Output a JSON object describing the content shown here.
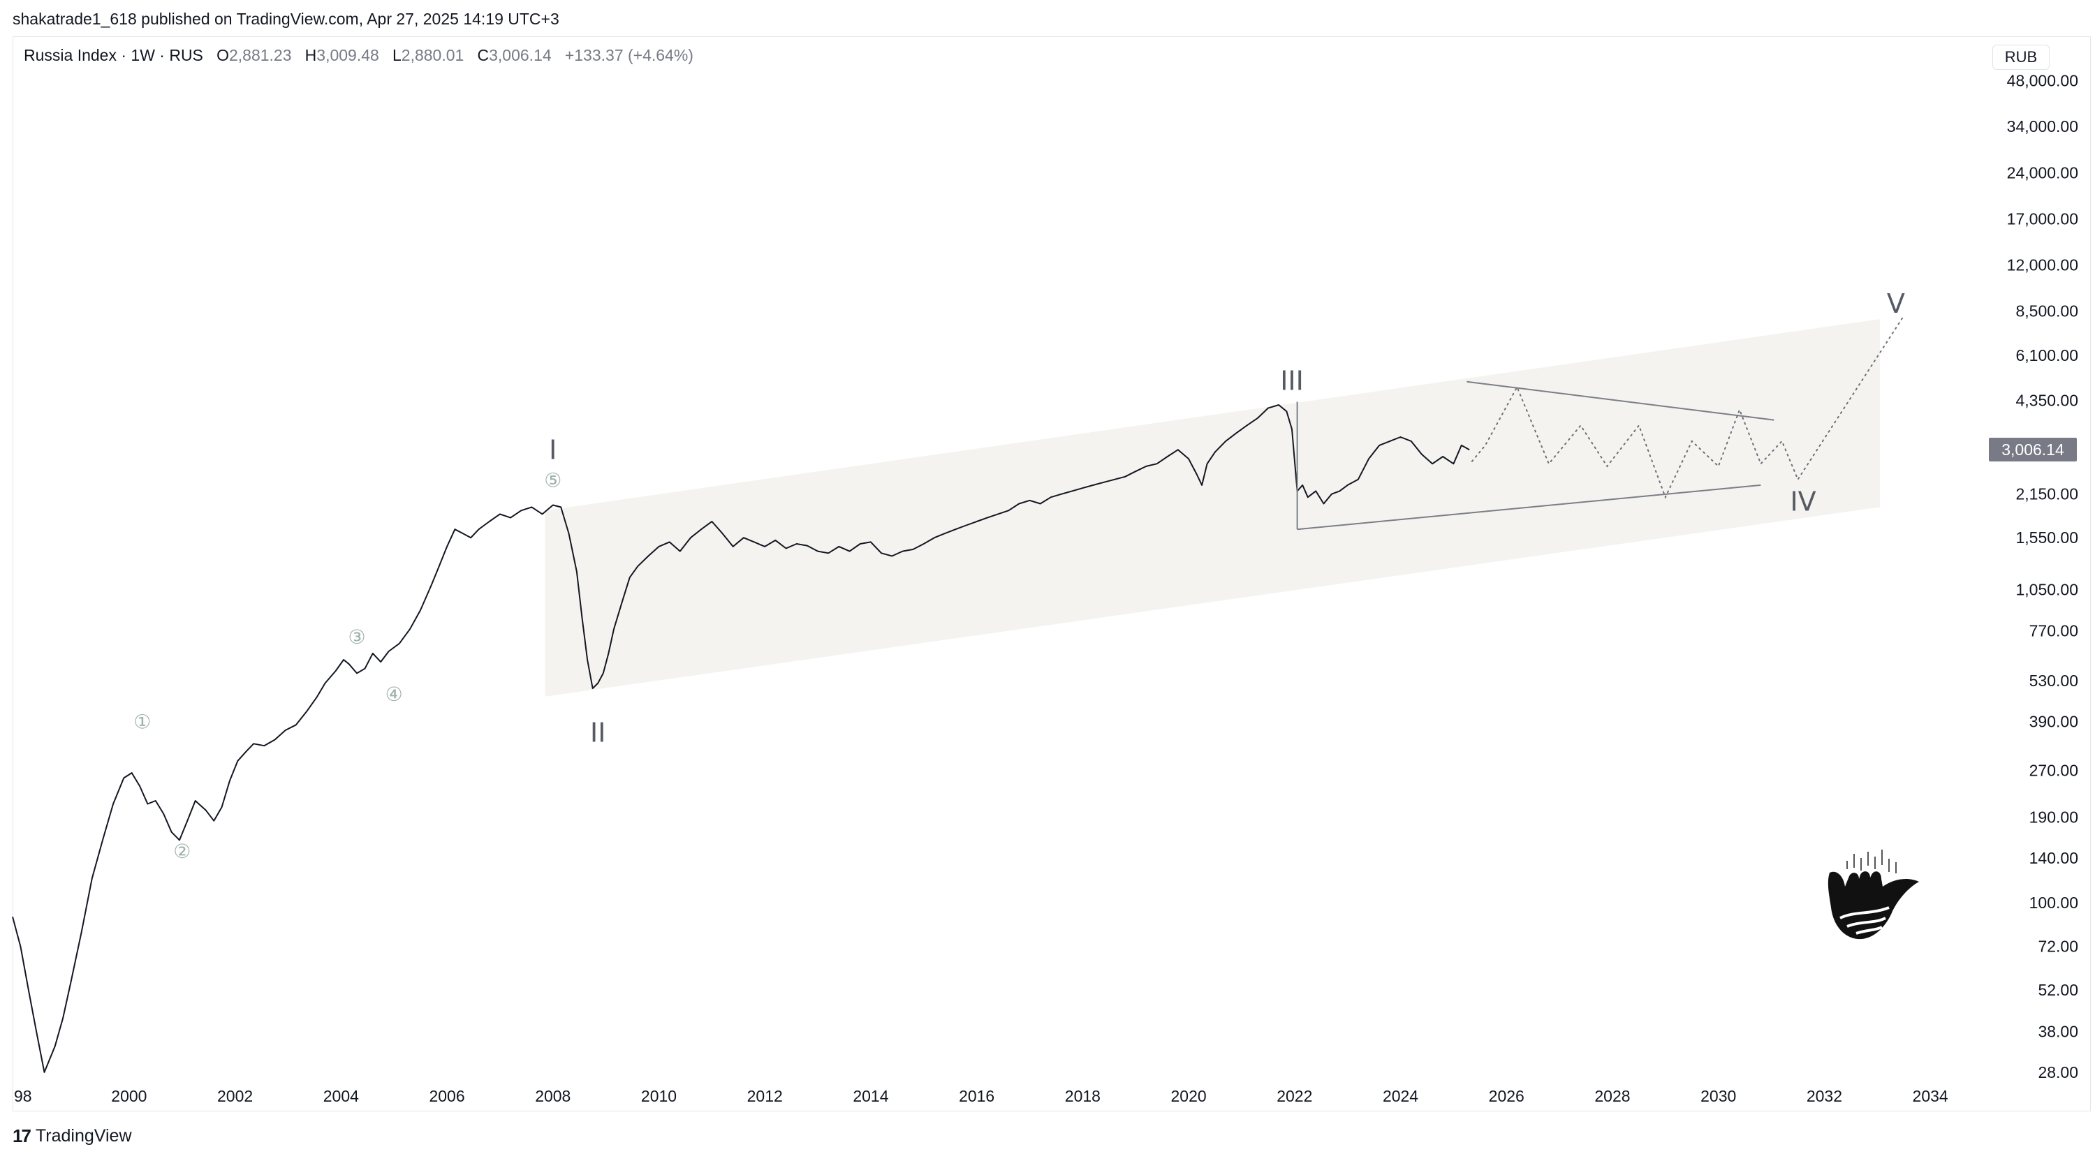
{
  "header": {
    "credit": "shakatrade1_618 published on TradingView.com, Apr 27, 2025 14:19 UTC+3"
  },
  "legend": {
    "symbol": "Russia Index · 1W · RUS",
    "open_label": "O",
    "open": "2,881.23",
    "high_label": "H",
    "high": "3,009.48",
    "low_label": "L",
    "low": "2,880.01",
    "close_label": "C",
    "close": "3,006.14",
    "change": "+133.37 (+4.64%)"
  },
  "currency_button": "RUB",
  "last_price_badge": "3,006.14",
  "footer": {
    "logo_glyph": "17",
    "brand": "TradingView"
  },
  "colors": {
    "price_line": "#131722",
    "channel_fill": "#f5f3f0",
    "projection": "#6b6f78",
    "wave_big": "#555a63",
    "wave_small": "#9fb2a8",
    "badge": "#787b86"
  },
  "chart_data": {
    "type": "line",
    "y_scale": "log",
    "ylim": [
      26,
      52000
    ],
    "xlim": [
      1997.8,
      2035
    ],
    "y_ticks": [
      "48,000.00",
      "34,000.00",
      "24,000.00",
      "17,000.00",
      "12,000.00",
      "8,500.00",
      "6,100.00",
      "4,350.00",
      "3,006.14",
      "2,150.00",
      "1,550.00",
      "1,050.00",
      "770.00",
      "530.00",
      "390.00",
      "270.00",
      "190.00",
      "140.00",
      "100.00",
      "72.00",
      "52.00",
      "38.00",
      "28.00"
    ],
    "x_ticks": [
      "98",
      "2000",
      "2002",
      "2004",
      "2006",
      "2008",
      "2010",
      "2012",
      "2014",
      "2016",
      "2018",
      "2020",
      "2022",
      "2024",
      "2026",
      "2028",
      "2030",
      "2032",
      "2034"
    ],
    "series": [
      {
        "x": [
          1997.8,
          1997.95,
          1998.1,
          1998.25,
          1998.4,
          1998.6,
          1998.75,
          1998.9,
          1999.1,
          1999.3,
          1999.5,
          1999.7,
          1999.9,
          2000.05,
          2000.2,
          2000.35,
          2000.5,
          2000.65,
          2000.8,
          2000.95,
          2001.1,
          2001.25,
          2001.45,
          2001.6,
          2001.75,
          2001.9,
          2002.05,
          2002.2,
          2002.35,
          2002.55,
          2002.75,
          2002.95,
          2003.15,
          2003.35,
          2003.55,
          2003.7,
          2003.9,
          2004.05,
          2004.15,
          2004.3,
          2004.45,
          2004.6,
          2004.75,
          2004.9,
          2005.1,
          2005.3,
          2005.5,
          2005.7,
          2005.85,
          2006.0,
          2006.15,
          2006.3,
          2006.45,
          2006.6,
          2006.8,
          2007.0,
          2007.2,
          2007.4,
          2007.6,
          2007.8,
          2008.0,
          2008.15,
          2008.3,
          2008.45,
          2008.55,
          2008.65,
          2008.75,
          2008.85,
          2008.95,
          2009.05,
          2009.15,
          2009.3,
          2009.45,
          2009.6,
          2009.8,
          2010.0,
          2010.2,
          2010.4,
          2010.6,
          2010.8,
          2011.0,
          2011.2,
          2011.4,
          2011.6,
          2011.8,
          2012.0,
          2012.2,
          2012.4,
          2012.6,
          2012.8,
          2013.0,
          2013.2,
          2013.4,
          2013.6,
          2013.8,
          2014.0,
          2014.2,
          2014.4,
          2014.6,
          2014.8,
          2015.0,
          2015.2,
          2015.4,
          2015.6,
          2015.8,
          2016.0,
          2016.2,
          2016.4,
          2016.6,
          2016.8,
          2017.0,
          2017.2,
          2017.4,
          2017.6,
          2017.8,
          2018.0,
          2018.2,
          2018.4,
          2018.6,
          2018.8,
          2019.0,
          2019.2,
          2019.4,
          2019.6,
          2019.8,
          2020.0,
          2020.15,
          2020.25,
          2020.35,
          2020.5,
          2020.7,
          2020.9,
          2021.1,
          2021.3,
          2021.5,
          2021.7,
          2021.85,
          2021.95,
          2022.05,
          2022.15,
          2022.25,
          2022.4,
          2022.55,
          2022.7,
          2022.85,
          2023.0,
          2023.2,
          2023.4,
          2023.6,
          2023.8,
          2024.0,
          2024.2,
          2024.4,
          2024.6,
          2024.8,
          2025.0,
          2025.15,
          2025.3
        ],
        "y": [
          90,
          72,
          52,
          38,
          28,
          34,
          42,
          55,
          80,
          120,
          160,
          210,
          255,
          265,
          240,
          210,
          215,
          195,
          170,
          160,
          185,
          215,
          200,
          185,
          205,
          250,
          290,
          310,
          330,
          325,
          340,
          365,
          380,
          420,
          470,
          520,
          570,
          620,
          600,
          560,
          580,
          650,
          610,
          660,
          700,
          780,
          900,
          1080,
          1250,
          1450,
          1650,
          1600,
          1550,
          1650,
          1750,
          1850,
          1800,
          1900,
          1950,
          1850,
          1980,
          1950,
          1600,
          1200,
          850,
          620,
          500,
          520,
          560,
          650,
          780,
          950,
          1150,
          1250,
          1350,
          1450,
          1500,
          1400,
          1550,
          1650,
          1750,
          1600,
          1450,
          1550,
          1500,
          1450,
          1520,
          1430,
          1480,
          1460,
          1400,
          1380,
          1450,
          1400,
          1480,
          1500,
          1380,
          1350,
          1400,
          1420,
          1480,
          1550,
          1600,
          1650,
          1700,
          1750,
          1800,
          1850,
          1900,
          2000,
          2050,
          2000,
          2100,
          2150,
          2200,
          2250,
          2300,
          2350,
          2400,
          2450,
          2550,
          2650,
          2700,
          2850,
          3000,
          2800,
          2500,
          2300,
          2700,
          2950,
          3200,
          3400,
          3600,
          3800,
          4100,
          4200,
          4000,
          3500,
          2200,
          2300,
          2100,
          2200,
          2000,
          2150,
          2200,
          2300,
          2400,
          2800,
          3100,
          3200,
          3300,
          3200,
          2900,
          2700,
          2850,
          2700,
          3100,
          3000
        ]
      }
    ],
    "projection": {
      "x": [
        2025.35,
        2025.6,
        2026.2,
        2026.8,
        2027.4,
        2027.9,
        2028.5,
        2029.0,
        2029.5,
        2030.0,
        2030.4,
        2030.8,
        2031.2,
        2031.5,
        2033.5
      ],
      "y": [
        2750,
        3100,
        4800,
        2700,
        3600,
        2650,
        3600,
        2100,
        3200,
        2650,
        4050,
        2700,
        3200,
        2400,
        8200
      ]
    },
    "channel": {
      "x": [
        2007.85,
        2033.05
      ],
      "lower_y": [
        470,
        1950
      ],
      "upper_y": [
        1900,
        8000
      ]
    },
    "triangle": {
      "upper": {
        "x": [
          2025.25,
          2031.05
        ],
        "y": [
          5000,
          3750
        ]
      },
      "lower": {
        "x": [
          2022.05,
          2030.8
        ],
        "y": [
          1650,
          2300
        ]
      },
      "vertical_x": 2022.05
    },
    "wave_labels": {
      "major": [
        {
          "label": "I",
          "x": 2008.0,
          "y": 2800
        },
        {
          "label": "II",
          "x": 2008.85,
          "y": 335
        },
        {
          "label": "III",
          "x": 2021.95,
          "y": 4700
        },
        {
          "label": "IV",
          "x": 2031.6,
          "y": 1900
        },
        {
          "label": "V",
          "x": 2033.35,
          "y": 8400
        }
      ],
      "minor": [
        {
          "label": "①",
          "x": 2000.25,
          "y": 370
        },
        {
          "label": "②",
          "x": 2001.0,
          "y": 140
        },
        {
          "label": "③",
          "x": 2004.3,
          "y": 700
        },
        {
          "label": "④",
          "x": 2005.0,
          "y": 455
        },
        {
          "label": "⑤",
          "x": 2008.0,
          "y": 2270
        }
      ]
    }
  }
}
